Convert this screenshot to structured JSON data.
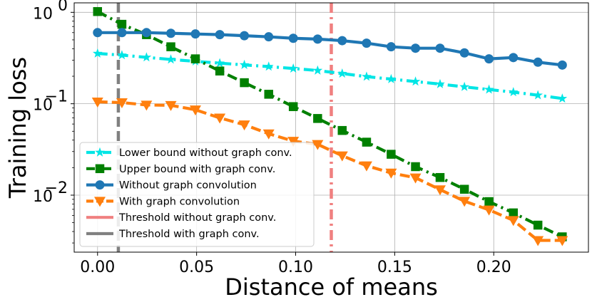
{
  "chart_data": {
    "type": "line",
    "yscale": "log",
    "xlabel": "Distance of means",
    "ylabel": "Training loss",
    "xlim": [
      -0.0118,
      0.2478
    ],
    "ylim": [
      0.00238,
      1.27
    ],
    "xticks": [
      0.0,
      0.05,
      0.1,
      0.15,
      0.2
    ],
    "xtick_labels": [
      "0.00",
      "0.05",
      "0.10",
      "0.15",
      "0.20"
    ],
    "yticks": [
      {
        "value": 1,
        "base": "10",
        "exp": "0"
      },
      {
        "value": 0.1,
        "base": "10",
        "exp": "−1"
      },
      {
        "value": 0.01,
        "base": "10",
        "exp": "−2"
      }
    ],
    "grid": true,
    "legend_location": "lower-left",
    "x": [
      0.0,
      0.0123,
      0.0247,
      0.037,
      0.0494,
      0.0617,
      0.0741,
      0.0864,
      0.0988,
      0.1111,
      0.1235,
      0.1358,
      0.1482,
      0.1605,
      0.1729,
      0.1852,
      0.1976,
      0.2099,
      0.2223,
      0.2346
    ],
    "series": [
      {
        "name": "Lower bound without graph conv.",
        "color": "#00e5e5",
        "linestyle": "dashdot",
        "marker": "star",
        "values": [
          0.355,
          0.34,
          0.322,
          0.305,
          0.291,
          0.278,
          0.266,
          0.255,
          0.243,
          0.231,
          0.214,
          0.198,
          0.186,
          0.175,
          0.164,
          0.153,
          0.143,
          0.134,
          0.124,
          0.114
        ]
      },
      {
        "name": "Upper bound with graph conv.",
        "color": "#008000",
        "linestyle": "dashdot",
        "marker": "square",
        "values": [
          1.02,
          0.74,
          0.57,
          0.42,
          0.31,
          0.228,
          0.17,
          0.127,
          0.093,
          0.069,
          0.051,
          0.038,
          0.028,
          0.0205,
          0.0156,
          0.0116,
          0.0085,
          0.0064,
          0.0047,
          0.0035
        ]
      },
      {
        "name": "Without graph convolution",
        "color": "#1f77b4",
        "linestyle": "solid",
        "marker": "circle",
        "values": [
          0.6,
          0.6,
          0.6,
          0.59,
          0.58,
          0.57,
          0.555,
          0.54,
          0.52,
          0.51,
          0.49,
          0.46,
          0.42,
          0.405,
          0.405,
          0.36,
          0.31,
          0.32,
          0.285,
          0.265
        ]
      },
      {
        "name": "With graph convolution",
        "color": "#ff7f0e",
        "linestyle": "dashed",
        "marker": "triangle-down",
        "values": [
          0.105,
          0.103,
          0.097,
          0.096,
          0.086,
          0.07,
          0.059,
          0.047,
          0.039,
          0.036,
          0.027,
          0.021,
          0.0175,
          0.0155,
          0.0115,
          0.0086,
          0.0069,
          0.0053,
          0.0032,
          0.0032
        ]
      }
    ],
    "vlines": [
      {
        "name": "Threshold without graph conv.",
        "x": 0.118,
        "color": "#f08080",
        "linestyle": "dashdot"
      },
      {
        "name": "Threshold with graph conv.",
        "x": 0.0105,
        "color": "#808080",
        "linestyle": "dashed"
      }
    ]
  }
}
